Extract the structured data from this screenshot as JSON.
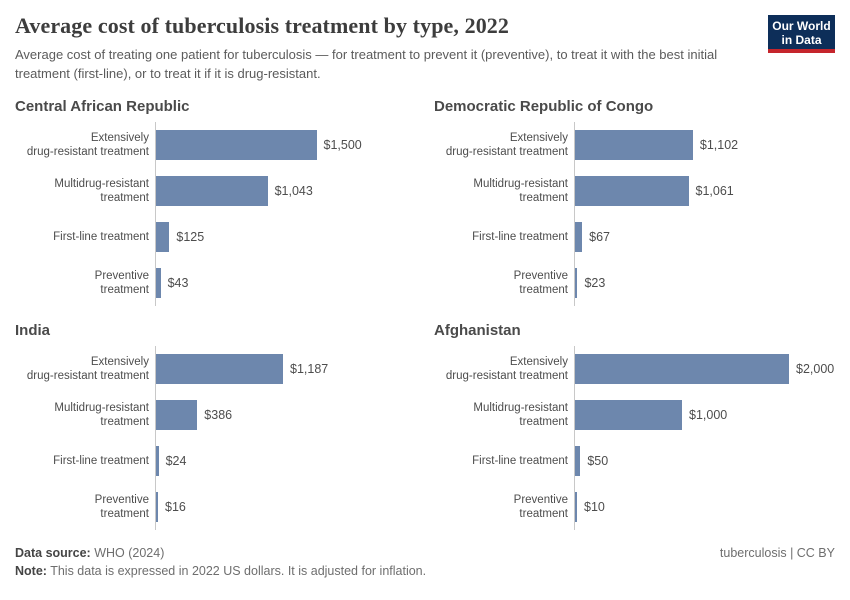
{
  "header": {
    "title": "Average cost of tuberculosis treatment by type, 2022",
    "subtitle": "Average cost of treating one patient for tuberculosis — for treatment to prevent it (preventive), to treat it with the best initial treatment (first-line), or to treat it if it is drug-resistant.",
    "logo": {
      "line1": "Our World",
      "line2": "in Data"
    }
  },
  "chart_data": {
    "type": "bar",
    "orientation": "horizontal",
    "unit": "2022 US dollars",
    "xmax": 2000,
    "grid": false,
    "legend": false,
    "bar_color": "#6d87ad",
    "categories": [
      [
        "Extensively",
        "drug-resistant treatment"
      ],
      [
        "Multidrug-resistant",
        "treatment"
      ],
      [
        "First-line treatment"
      ],
      [
        "Preventive",
        "treatment"
      ]
    ],
    "panels": [
      {
        "country": "Central African Republic",
        "values": [
          1500,
          1043,
          125,
          43
        ],
        "value_labels": [
          "$1,500",
          "$1,043",
          "$125",
          "$43"
        ]
      },
      {
        "country": "Democratic Republic of Congo",
        "values": [
          1102,
          1061,
          67,
          23
        ],
        "value_labels": [
          "$1,102",
          "$1,061",
          "$67",
          "$23"
        ]
      },
      {
        "country": "India",
        "values": [
          1187,
          386,
          24,
          16
        ],
        "value_labels": [
          "$1,187",
          "$386",
          "$24",
          "$16"
        ]
      },
      {
        "country": "Afghanistan",
        "values": [
          2000,
          1000,
          50,
          10
        ],
        "value_labels": [
          "$2,000",
          "$1,000",
          "$50",
          "$10"
        ]
      }
    ]
  },
  "footer": {
    "source_label": "Data source:",
    "source_value": "WHO (2024)",
    "note_label": "Note:",
    "note_value": "This data is expressed in 2022 US dollars. It is adjusted for inflation.",
    "credit": "tuberculosis | CC BY"
  },
  "colors": {
    "bar": "#6d87ad",
    "axis": "#c8c8c8",
    "logo_background": "#0d2e59",
    "logo_stripe": "#c5252c"
  }
}
